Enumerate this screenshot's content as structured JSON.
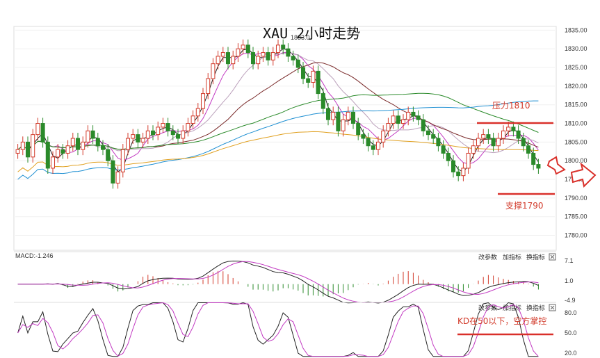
{
  "title": "XAU 2小时走势",
  "annotations": {
    "resistance": "压力1810",
    "support": "支撑1790",
    "kd_note": "KD在50以下，空方掌控"
  },
  "panel_buttons": [
    "改参数",
    "加指标",
    "换指标"
  ],
  "macd_label": "MACD:-1.246",
  "colors": {
    "up": "#d23a2a",
    "down": "#2a8a2a",
    "red_line": "#d9302a"
  },
  "chart_data": [
    {
      "type": "candlestick",
      "title": "XAU 2小时走势",
      "yticks": [
        "1835.00",
        "1830.00",
        "1825.00",
        "1820.00",
        "1815.00",
        "1810.00",
        "1805.00",
        "1800.00",
        "1795.00",
        "1790.00",
        "1785.00",
        "1780.00"
      ],
      "ylim": [
        1776,
        1836
      ],
      "peak_label": "1833.0",
      "close_series": [
        1803,
        1805,
        1801,
        1807,
        1810,
        1805,
        1798,
        1801,
        1803,
        1802,
        1804,
        1806,
        1803,
        1805,
        1808,
        1806,
        1804,
        1803,
        1800,
        1794,
        1797,
        1803,
        1806,
        1807,
        1805,
        1806,
        1808,
        1807,
        1809,
        1810,
        1808,
        1807,
        1806,
        1808,
        1810,
        1812,
        1814,
        1818,
        1822,
        1826,
        1828,
        1829,
        1826,
        1828,
        1830,
        1831,
        1829,
        1826,
        1828,
        1829,
        1827,
        1829,
        1831,
        1830,
        1828,
        1827,
        1825,
        1822,
        1821,
        1824,
        1818,
        1814,
        1811,
        1813,
        1808,
        1811,
        1813,
        1810,
        1807,
        1806,
        1804,
        1803,
        1805,
        1808,
        1810,
        1812,
        1810,
        1811,
        1813,
        1812,
        1811,
        1808,
        1807,
        1806,
        1804,
        1802,
        1800,
        1797,
        1796,
        1798,
        1802,
        1804,
        1806,
        1807,
        1806,
        1804,
        1806,
        1808,
        1809,
        1808,
        1806,
        1804,
        1802,
        1799,
        1798
      ],
      "levels": {
        "resistance": 1810,
        "support": 1790
      }
    },
    {
      "type": "macd",
      "label": "MACD:-1.246",
      "yticks": [
        "7.1",
        "1.0",
        "-4.9"
      ],
      "ylim": [
        -4.9,
        7.1
      ]
    },
    {
      "type": "kd",
      "yticks": [
        "80.0",
        "50.0",
        "20.0"
      ],
      "ylim": [
        20,
        80
      ],
      "note": "KD在50以下，空方掌控"
    }
  ]
}
